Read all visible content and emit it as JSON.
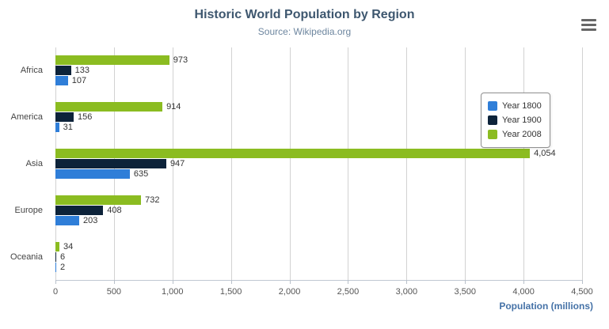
{
  "chart_data": {
    "type": "bar",
    "orientation": "horizontal",
    "title": "Historic World Population by Region",
    "subtitle": "Source: Wikipedia.org",
    "categories": [
      "Africa",
      "America",
      "Asia",
      "Europe",
      "Oceania"
    ],
    "series": [
      {
        "name": "Year 1800",
        "color": "#2f7ed8",
        "values": [
          107,
          31,
          635,
          203,
          2
        ]
      },
      {
        "name": "Year 1900",
        "color": "#0d233a",
        "values": [
          133,
          156,
          947,
          408,
          6
        ]
      },
      {
        "name": "Year 2008",
        "color": "#8bbc21",
        "values": [
          973,
          914,
          4054,
          732,
          34
        ]
      }
    ],
    "bar_display_order": [
      "Year 2008",
      "Year 1900",
      "Year 1800"
    ],
    "data_labels": true,
    "xlabel": "Population (millions)",
    "xlim": [
      0,
      4500
    ],
    "x_ticks": [
      0,
      500,
      1000,
      1500,
      2000,
      2500,
      3000,
      3500,
      4000,
      4500
    ],
    "grid": true,
    "legend_position": "right"
  },
  "icons": {
    "menu": "hamburger-context-menu"
  },
  "colors": {
    "title": "#3e576f",
    "subtitle": "#6d869f",
    "axis_title": "#4572a7",
    "gridline": "#d2d2d2"
  }
}
